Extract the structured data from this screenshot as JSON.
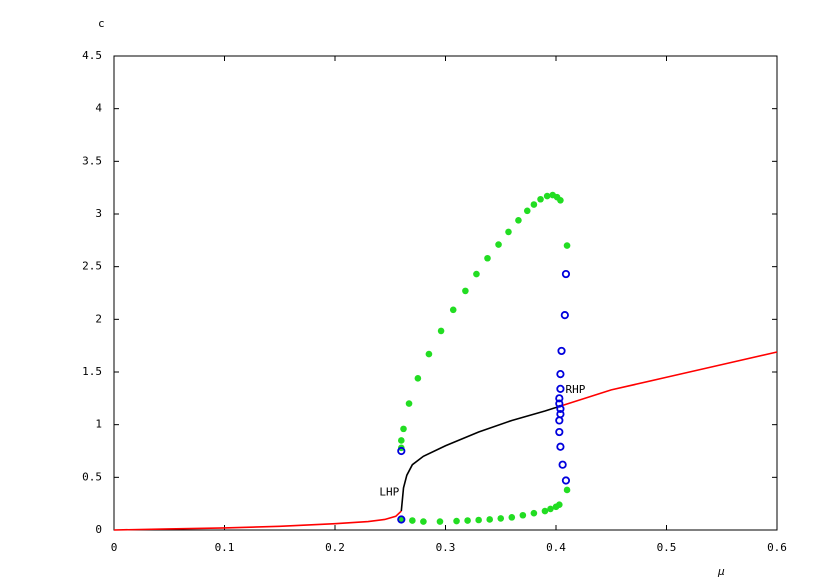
{
  "chart_data": {
    "type": "line",
    "xlabel": "μ",
    "ylabel": "c",
    "xlim": [
      0,
      0.6
    ],
    "ylim": [
      0,
      4.5
    ],
    "xticks": [
      0,
      0.1,
      0.2,
      0.3,
      0.4,
      0.5,
      0.6
    ],
    "yticks": [
      0,
      0.5,
      1,
      1.5,
      2,
      2.5,
      3,
      3.5,
      4,
      4.5
    ],
    "annotations": [
      {
        "text": "LHP",
        "x": 0.26,
        "y": 0.28
      },
      {
        "text": "RHP",
        "x": 0.405,
        "y": 1.33
      }
    ],
    "series": [
      {
        "style": "line",
        "color": "#ff0000",
        "x": [
          0,
          0.05,
          0.1,
          0.15,
          0.2,
          0.23,
          0.245,
          0.255,
          0.26
        ],
        "values": [
          0,
          0.01,
          0.02,
          0.035,
          0.06,
          0.08,
          0.1,
          0.13,
          0.18
        ]
      },
      {
        "style": "line",
        "color": "#ff0000",
        "x": [
          0.405,
          0.45,
          0.5,
          0.55,
          0.6
        ],
        "values": [
          1.18,
          1.33,
          1.45,
          1.57,
          1.69
        ]
      },
      {
        "style": "line",
        "color": "#000000",
        "x": [
          0.26,
          0.262,
          0.265,
          0.27,
          0.28,
          0.3,
          0.33,
          0.36,
          0.39,
          0.405
        ],
        "values": [
          0.18,
          0.4,
          0.52,
          0.62,
          0.7,
          0.8,
          0.93,
          1.04,
          1.13,
          1.18
        ]
      },
      {
        "style": "dot",
        "color": "#22dd22",
        "x": [
          0.26,
          0.26,
          0.262,
          0.267,
          0.275,
          0.285,
          0.296,
          0.307,
          0.318,
          0.328,
          0.338,
          0.348,
          0.357,
          0.366,
          0.374,
          0.38,
          0.386,
          0.392,
          0.397,
          0.401,
          0.404,
          0.41
        ],
        "values": [
          0.78,
          0.85,
          0.96,
          1.2,
          1.44,
          1.67,
          1.89,
          2.09,
          2.27,
          2.43,
          2.58,
          2.71,
          2.83,
          2.94,
          3.03,
          3.09,
          3.14,
          3.17,
          3.18,
          3.16,
          3.13,
          2.7
        ]
      },
      {
        "style": "dot",
        "color": "#22dd22",
        "x": [
          0.26,
          0.27,
          0.28,
          0.295,
          0.31,
          0.32,
          0.33,
          0.34,
          0.35,
          0.36,
          0.37,
          0.38,
          0.39,
          0.395,
          0.4,
          0.403,
          0.41
        ],
        "values": [
          0.1,
          0.09,
          0.08,
          0.08,
          0.085,
          0.09,
          0.095,
          0.1,
          0.11,
          0.12,
          0.14,
          0.16,
          0.18,
          0.2,
          0.22,
          0.24,
          0.38
        ]
      },
      {
        "style": "circle",
        "color": "#0000dd",
        "x": [
          0.26,
          0.26,
          0.409,
          0.408,
          0.405,
          0.404,
          0.404,
          0.403,
          0.403,
          0.404,
          0.404,
          0.403,
          0.403,
          0.404,
          0.406,
          0.409
        ],
        "values": [
          0.75,
          0.1,
          2.43,
          2.04,
          1.7,
          1.48,
          1.34,
          1.25,
          1.2,
          1.15,
          1.1,
          1.04,
          0.93,
          0.79,
          0.62,
          0.47
        ]
      }
    ]
  }
}
